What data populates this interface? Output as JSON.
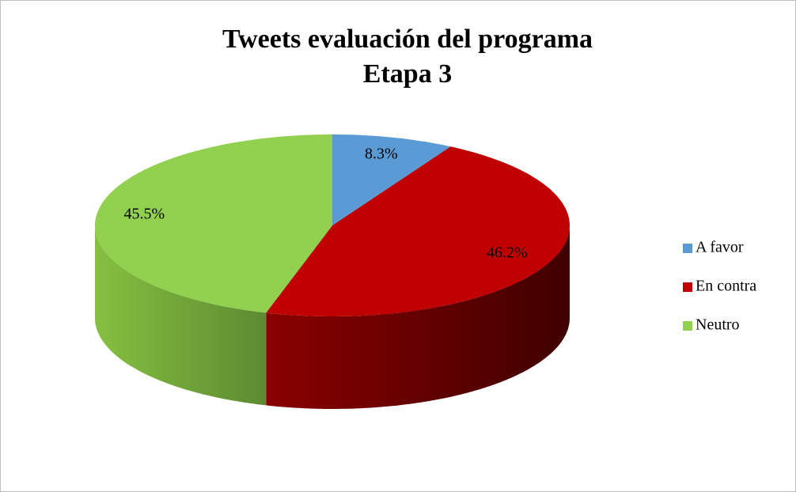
{
  "chart_data": {
    "type": "pie3d",
    "title": [
      "Tweets evaluación del programa",
      "Etapa 3"
    ],
    "categories": [
      "A favor",
      "En contra",
      "Neutro"
    ],
    "values": [
      8.3,
      46.2,
      45.5
    ],
    "value_labels": [
      "8.3%",
      "46.2%",
      "45.5%"
    ],
    "colors": [
      "#5b9bd5",
      "#c00000",
      "#92d050"
    ],
    "legend": "right"
  }
}
